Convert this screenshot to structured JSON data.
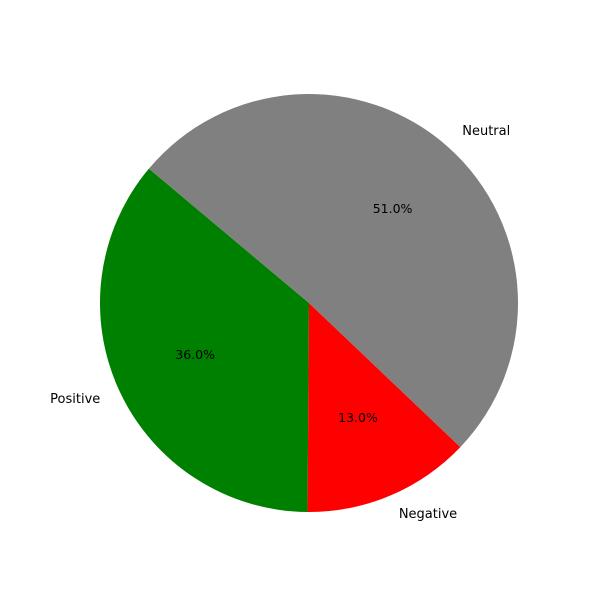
{
  "chart_data": {
    "type": "pie",
    "title": "",
    "slices": [
      {
        "label": "Positive",
        "value": 36.0,
        "pct_text": "36.0%",
        "color": "#008000"
      },
      {
        "label": "Negative",
        "value": 13.0,
        "pct_text": "13.0%",
        "color": "#ff0000"
      },
      {
        "label": "Neutral",
        "value": 51.0,
        "pct_text": "51.0%",
        "color": "#808080"
      }
    ],
    "start_angle_deg": 140,
    "direction": "counterclockwise",
    "legend": "none"
  }
}
